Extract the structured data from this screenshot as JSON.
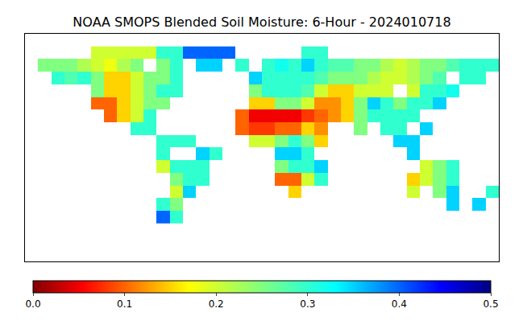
{
  "chart_data": {
    "type": "heatmap",
    "title": "NOAA SMOPS Blended Soil Moisture: 6-Hour - 2024010718",
    "tick_labels": false,
    "grid": false,
    "xlim": [
      -180,
      180
    ],
    "ylim": [
      -90,
      90
    ],
    "x": [
      -175,
      -165,
      -155,
      -145,
      -135,
      -125,
      -115,
      -105,
      -95,
      -85,
      -75,
      -65,
      -55,
      -45,
      -35,
      -25,
      -15,
      -5,
      5,
      15,
      25,
      35,
      45,
      55,
      65,
      75,
      85,
      95,
      105,
      115,
      125,
      135,
      145,
      155,
      165,
      175
    ],
    "y": [
      75,
      65,
      55,
      45,
      35,
      25,
      15,
      5,
      -5,
      -15,
      -25,
      -35,
      -45,
      -55
    ],
    "z": [
      [
        null,
        null,
        null,
        null,
        null,
        0.2,
        0.2,
        0.2,
        0.2,
        0.2,
        0.3,
        0.3,
        0.4,
        0.4,
        0.4,
        0.4,
        null,
        null,
        null,
        null,
        null,
        0.3,
        0.3,
        null,
        null,
        null,
        null,
        null,
        null,
        null,
        null,
        null,
        null,
        null,
        null,
        null
      ],
      [
        null,
        0.25,
        0.25,
        0.25,
        0.22,
        0.2,
        0.18,
        0.22,
        0.25,
        null,
        0.25,
        0.3,
        null,
        0.35,
        0.35,
        null,
        0.3,
        null,
        0.3,
        0.32,
        0.3,
        0.35,
        0.3,
        0.28,
        0.28,
        0.25,
        0.25,
        0.22,
        0.2,
        0.22,
        0.25,
        0.25,
        0.28,
        0.3,
        0.3,
        0.3
      ],
      [
        null,
        null,
        0.3,
        0.28,
        0.3,
        0.25,
        0.15,
        0.15,
        0.2,
        0.25,
        0.25,
        0.3,
        null,
        null,
        null,
        null,
        null,
        0.35,
        0.3,
        0.3,
        0.3,
        0.3,
        0.28,
        0.25,
        0.25,
        0.25,
        0.22,
        0.2,
        0.2,
        0.22,
        0.25,
        0.28,
        null,
        0.3,
        0.3,
        null
      ],
      [
        null,
        null,
        null,
        null,
        null,
        0.25,
        0.15,
        0.15,
        0.2,
        0.25,
        0.3,
        0.3,
        null,
        null,
        null,
        null,
        null,
        0.25,
        0.3,
        0.3,
        0.3,
        0.28,
        0.2,
        0.15,
        0.15,
        0.2,
        0.2,
        0.2,
        null,
        0.2,
        0.3,
        0.3,
        0.32,
        null,
        null,
        null
      ],
      [
        null,
        null,
        null,
        null,
        null,
        0.1,
        0.1,
        0.15,
        0.2,
        0.25,
        0.25,
        null,
        null,
        null,
        null,
        null,
        null,
        0.15,
        0.15,
        0.25,
        0.25,
        0.2,
        0.12,
        0.12,
        0.15,
        0.25,
        0.35,
        0.3,
        0.25,
        0.3,
        0.3,
        0.35,
        null,
        null,
        null,
        null
      ],
      [
        null,
        null,
        null,
        null,
        null,
        null,
        0.1,
        0.15,
        0.2,
        0.3,
        null,
        null,
        null,
        null,
        null,
        null,
        0.1,
        0.05,
        0.05,
        0.05,
        0.05,
        0.08,
        0.1,
        0.12,
        0.15,
        0.25,
        0.3,
        0.3,
        0.3,
        0.3,
        null,
        null,
        null,
        null,
        null,
        null
      ],
      [
        null,
        null,
        null,
        null,
        null,
        null,
        null,
        null,
        0.3,
        0.3,
        null,
        null,
        null,
        null,
        null,
        null,
        0.1,
        0.08,
        0.08,
        0.1,
        0.1,
        0.15,
        0.12,
        null,
        null,
        0.25,
        null,
        0.3,
        0.3,
        null,
        0.35,
        null,
        null,
        null,
        null,
        null
      ],
      [
        null,
        null,
        null,
        null,
        null,
        null,
        null,
        null,
        null,
        null,
        0.3,
        0.3,
        0.3,
        null,
        null,
        null,
        null,
        0.2,
        0.2,
        0.25,
        0.3,
        0.25,
        0.15,
        null,
        null,
        null,
        null,
        null,
        0.35,
        0.35,
        null,
        null,
        null,
        null,
        null,
        null
      ],
      [
        null,
        null,
        null,
        null,
        null,
        null,
        null,
        null,
        null,
        null,
        0.3,
        null,
        null,
        0.35,
        0.3,
        null,
        null,
        null,
        null,
        0.35,
        0.35,
        0.3,
        null,
        null,
        null,
        null,
        null,
        null,
        null,
        0.35,
        null,
        null,
        null,
        null,
        null,
        null
      ],
      [
        null,
        null,
        null,
        null,
        null,
        null,
        null,
        null,
        null,
        null,
        0.2,
        0.3,
        0.3,
        0.3,
        null,
        null,
        null,
        null,
        null,
        0.25,
        0.3,
        0.3,
        0.35,
        null,
        null,
        null,
        null,
        null,
        null,
        null,
        0.2,
        0.25,
        0.3,
        null,
        null,
        null
      ],
      [
        null,
        null,
        null,
        null,
        null,
        null,
        null,
        null,
        null,
        null,
        null,
        0.25,
        0.3,
        0.3,
        null,
        null,
        null,
        null,
        null,
        0.1,
        0.1,
        0.2,
        0.3,
        null,
        null,
        null,
        null,
        null,
        null,
        0.15,
        0.2,
        0.25,
        0.3,
        null,
        null,
        null
      ],
      [
        null,
        null,
        null,
        null,
        null,
        null,
        null,
        null,
        null,
        null,
        null,
        0.2,
        0.35,
        null,
        null,
        null,
        null,
        null,
        null,
        null,
        0.15,
        null,
        null,
        null,
        null,
        null,
        null,
        null,
        null,
        0.2,
        null,
        0.25,
        0.35,
        null,
        null,
        0.3
      ],
      [
        null,
        null,
        null,
        null,
        null,
        null,
        null,
        null,
        null,
        null,
        0.3,
        0.25,
        null,
        null,
        null,
        null,
        null,
        null,
        null,
        null,
        null,
        null,
        null,
        null,
        null,
        null,
        null,
        null,
        null,
        null,
        null,
        null,
        0.35,
        null,
        0.35,
        null
      ],
      [
        null,
        null,
        null,
        null,
        null,
        null,
        null,
        null,
        null,
        null,
        0.4,
        0.3,
        null,
        null,
        null,
        null,
        null,
        null,
        null,
        null,
        null,
        null,
        null,
        null,
        null,
        null,
        null,
        null,
        null,
        null,
        null,
        null,
        null,
        null,
        null,
        null
      ]
    ],
    "colorbar": {
      "range": [
        0,
        0.5
      ],
      "ticks": [
        {
          "value": 0,
          "label": "0.0"
        },
        0.1,
        0.2,
        0.3,
        0.4,
        0.5
      ]
    }
  }
}
